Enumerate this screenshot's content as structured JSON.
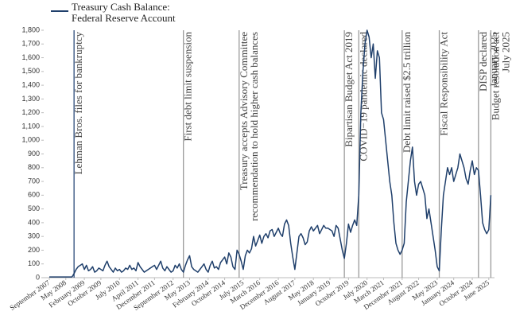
{
  "chart_data": {
    "type": "line",
    "x": [
      "2007-09",
      "2007-10",
      "2007-11",
      "2007-12",
      "2008-01",
      "2008-02",
      "2008-03",
      "2008-04",
      "2008-05",
      "2008-06",
      "2008-07",
      "2008-08",
      "2008-09",
      "2008-10",
      "2008-11",
      "2008-12",
      "2009-01",
      "2009-02",
      "2009-03",
      "2009-04",
      "2009-05",
      "2009-06",
      "2009-07",
      "2009-08",
      "2009-09",
      "2009-10",
      "2009-11",
      "2009-12",
      "2010-01",
      "2010-02",
      "2010-03",
      "2010-04",
      "2010-05",
      "2010-06",
      "2010-07",
      "2010-08",
      "2010-09",
      "2010-10",
      "2010-11",
      "2010-12",
      "2011-01",
      "2011-02",
      "2011-03",
      "2011-04",
      "2011-05",
      "2011-06",
      "2011-07",
      "2011-08",
      "2011-09",
      "2011-10",
      "2011-11",
      "2011-12",
      "2012-01",
      "2012-02",
      "2012-03",
      "2012-04",
      "2012-05",
      "2012-06",
      "2012-07",
      "2012-08",
      "2012-09",
      "2012-10",
      "2012-11",
      "2012-12",
      "2013-01",
      "2013-02",
      "2013-03",
      "2013-04",
      "2013-05",
      "2013-06",
      "2013-07",
      "2013-08",
      "2013-09",
      "2013-10",
      "2013-11",
      "2013-12",
      "2014-01",
      "2014-02",
      "2014-03",
      "2014-04",
      "2014-05",
      "2014-06",
      "2014-07",
      "2014-08",
      "2014-09",
      "2014-10",
      "2014-11",
      "2014-12",
      "2015-01",
      "2015-02",
      "2015-03",
      "2015-04",
      "2015-05",
      "2015-06",
      "2015-07",
      "2015-08",
      "2015-09",
      "2015-10",
      "2015-11",
      "2015-12",
      "2016-01",
      "2016-02",
      "2016-03",
      "2016-04",
      "2016-05",
      "2016-06",
      "2016-07",
      "2016-08",
      "2016-09",
      "2016-10",
      "2016-11",
      "2016-12",
      "2017-01",
      "2017-02",
      "2017-03",
      "2017-04",
      "2017-05",
      "2017-06",
      "2017-07",
      "2017-08",
      "2017-09",
      "2017-10",
      "2017-11",
      "2017-12",
      "2018-01",
      "2018-02",
      "2018-03",
      "2018-04",
      "2018-05",
      "2018-06",
      "2018-07",
      "2018-08",
      "2018-09",
      "2018-10",
      "2018-11",
      "2018-12",
      "2019-01",
      "2019-02",
      "2019-03",
      "2019-04",
      "2019-05",
      "2019-06",
      "2019-07",
      "2019-08",
      "2019-09",
      "2019-10",
      "2019-11",
      "2019-12",
      "2020-01",
      "2020-02",
      "2020-03",
      "2020-04",
      "2020-05",
      "2020-06",
      "2020-07",
      "2020-08",
      "2020-09",
      "2020-10",
      "2020-11",
      "2020-12",
      "2021-01",
      "2021-02",
      "2021-03",
      "2021-04",
      "2021-05",
      "2021-06",
      "2021-07",
      "2021-08",
      "2021-09",
      "2021-10",
      "2021-11",
      "2021-12",
      "2022-01",
      "2022-02",
      "2022-03",
      "2022-04",
      "2022-05",
      "2022-06",
      "2022-07",
      "2022-08",
      "2022-09",
      "2022-10",
      "2022-11",
      "2022-12",
      "2023-01",
      "2023-02",
      "2023-03",
      "2023-04",
      "2023-05",
      "2023-06",
      "2023-07",
      "2023-08",
      "2023-09",
      "2023-10",
      "2023-11",
      "2023-12",
      "2024-01",
      "2024-02",
      "2024-03",
      "2024-04",
      "2024-05",
      "2024-06",
      "2024-07",
      "2024-08",
      "2024-09",
      "2024-10",
      "2024-11",
      "2024-12",
      "2025-01",
      "2025-02",
      "2025-03",
      "2025-04",
      "2025-05",
      "2025-06",
      "2025-07"
    ],
    "series": [
      {
        "name": "Treasury Cash Balance: Federal Reserve Account",
        "color": "#1f3f6b",
        "values": [
          5,
          5,
          5,
          5,
          5,
          5,
          5,
          5,
          5,
          5,
          5,
          5,
          30,
          60,
          80,
          90,
          100,
          60,
          90,
          50,
          60,
          80,
          40,
          50,
          70,
          60,
          50,
          90,
          120,
          80,
          60,
          40,
          70,
          50,
          60,
          40,
          50,
          70,
          60,
          90,
          60,
          70,
          50,
          110,
          80,
          60,
          40,
          50,
          60,
          70,
          80,
          90,
          60,
          90,
          120,
          70,
          50,
          80,
          60,
          40,
          50,
          90,
          70,
          100,
          60,
          40,
          90,
          130,
          160,
          80,
          60,
          50,
          40,
          60,
          80,
          100,
          60,
          40,
          90,
          120,
          70,
          80,
          60,
          110,
          130,
          150,
          100,
          180,
          150,
          80,
          60,
          200,
          170,
          120,
          60,
          160,
          200,
          180,
          210,
          300,
          230,
          270,
          310,
          250,
          300,
          320,
          290,
          340,
          350,
          300,
          330,
          360,
          320,
          300,
          390,
          420,
          380,
          250,
          150,
          60,
          180,
          300,
          320,
          290,
          240,
          260,
          340,
          370,
          340,
          360,
          380,
          320,
          350,
          380,
          360,
          360,
          350,
          340,
          300,
          380,
          360,
          280,
          200,
          140,
          250,
          390,
          330,
          380,
          420,
          380,
          600,
          1200,
          1500,
          1700,
          1800,
          1750,
          1600,
          1700,
          1450,
          1650,
          1600,
          1200,
          1150,
          1000,
          850,
          700,
          600,
          400,
          250,
          200,
          170,
          200,
          250,
          550,
          700,
          850,
          950,
          700,
          600,
          680,
          700,
          650,
          600,
          430,
          500,
          400,
          300,
          200,
          80,
          50,
          350,
          600,
          700,
          800,
          750,
          800,
          700,
          750,
          800,
          900,
          850,
          800,
          720,
          680,
          780,
          850,
          750,
          800,
          780,
          600,
          400,
          350,
          320,
          350,
          600
        ]
      }
    ],
    "xlim": [
      "2007-09",
      "2025-08"
    ],
    "xticks": [
      {
        "value": "2007-09",
        "label": "September 2007"
      },
      {
        "value": "2008-05",
        "label": "May 2008"
      },
      {
        "value": "2009-02",
        "label": "February 2009"
      },
      {
        "value": "2009-10",
        "label": "October 2009"
      },
      {
        "value": "2010-07",
        "label": "July 2010"
      },
      {
        "value": "2011-04",
        "label": "April 2011"
      },
      {
        "value": "2011-12",
        "label": "December 2011"
      },
      {
        "value": "2012-09",
        "label": "September 2012"
      },
      {
        "value": "2013-05",
        "label": "May 2013"
      },
      {
        "value": "2014-02",
        "label": "February 2014"
      },
      {
        "value": "2014-10",
        "label": "October 2014"
      },
      {
        "value": "2015-07",
        "label": "July 2015"
      },
      {
        "value": "2016-03",
        "label": "March 2016"
      },
      {
        "value": "2016-12",
        "label": "December 2016"
      },
      {
        "value": "2017-08",
        "label": "August 2017"
      },
      {
        "value": "2018-05",
        "label": "May 2018"
      },
      {
        "value": "2019-01",
        "label": "January 2019"
      },
      {
        "value": "2019-10",
        "label": "October 2019"
      },
      {
        "value": "2020-07",
        "label": "July 2020"
      },
      {
        "value": "2021-03",
        "label": "March 2021"
      },
      {
        "value": "2021-12",
        "label": "December 2021"
      },
      {
        "value": "2022-08",
        "label": "August 2022"
      },
      {
        "value": "2023-05",
        "label": "May 2023"
      },
      {
        "value": "2024-01",
        "label": "January 2024"
      },
      {
        "value": "2024-10",
        "label": "October 2024"
      },
      {
        "value": "2025-06",
        "label": "June 2025"
      }
    ],
    "ylim": [
      0,
      1800
    ],
    "yticks": [
      0,
      100,
      200,
      300,
      400,
      500,
      600,
      700,
      800,
      900,
      {
        "value": 1000,
        "label": "1,000"
      },
      {
        "value": 1100,
        "label": "1,100"
      },
      {
        "value": 1200,
        "label": "1,200"
      },
      {
        "value": 1300,
        "label": "1,300"
      },
      {
        "value": 1400,
        "label": "1,400"
      },
      {
        "value": 1500,
        "label": "1,500"
      },
      {
        "value": 1600,
        "label": "1,600"
      },
      {
        "value": 1700,
        "label": "1,700"
      },
      {
        "value": 1800,
        "label": "1,800"
      }
    ],
    "grid": false,
    "annotations": [
      {
        "x": "2008-09",
        "lines": [
          "Lehman Bros. files for bankruptcy"
        ],
        "color": "#2c4a7a"
      },
      {
        "x": "2013-02",
        "lines": [
          "First debt limit suspension"
        ],
        "color": "#9a9a9a"
      },
      {
        "x": "2015-05",
        "lines": [
          "Treasury accepts Advisory Committee",
          "recommendation to hold higher cash balances"
        ],
        "color": "#9a9a9a"
      },
      {
        "x": "2019-08",
        "lines": [
          "Bipartisan Budget Act 2019"
        ],
        "color": "#9a9a9a"
      },
      {
        "x": "2020-03",
        "lines": [
          "COVID−19 pandemic declared"
        ],
        "color": "#9a9a9a"
      },
      {
        "x": "2021-12",
        "lines": [
          "Debt limit raised $2.5 trillion"
        ],
        "color": "#9a9a9a"
      },
      {
        "x": "2023-06",
        "lines": [
          "Fiscal Responsibility Act"
        ],
        "color": "#9a9a9a"
      },
      {
        "x": "2025-01",
        "lines": [
          "DISP declared",
          "January 2025"
        ],
        "color": "#9a9a9a"
      },
      {
        "x": "2025-07",
        "lines": [
          "Budget resolution act",
          "July 2025"
        ],
        "color": "#9a9a9a"
      }
    ]
  }
}
